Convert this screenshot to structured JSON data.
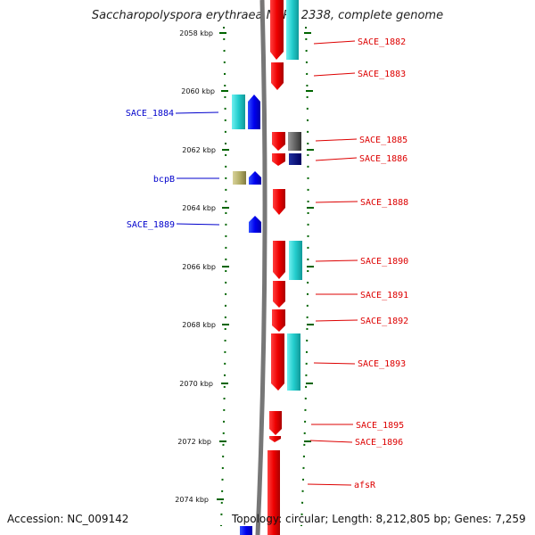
{
  "title": "Saccharopolyspora erythraea NRRL 2338, complete genome",
  "footer": {
    "accession": "Accession: NC_009142",
    "stats": "Topology: circular; Length: 8,212,805 bp; Genes: 7,259"
  },
  "colors": {
    "forward_cds": "#ff0000",
    "reverse_cds": "#0000ff",
    "forward_feature": "#22cccc",
    "reverse_feature": "#33dddd",
    "dark_feature": "#555555",
    "navy_feature": "#000080",
    "khaki_feature": "#b5b06a",
    "tick": "#006400",
    "forward_label": "#dd0000",
    "reverse_label": "#0000cc"
  },
  "ticks": [
    "2058 kbp",
    "2060 kbp",
    "2062 kbp",
    "2064 kbp",
    "2066 kbp",
    "2068 kbp",
    "2070 kbp",
    "2072 kbp",
    "2074 kbp"
  ],
  "forward_labels": [
    "SACE_1882",
    "SACE_1883",
    "SACE_1885",
    "SACE_1886",
    "SACE_1888",
    "SACE_1890",
    "SACE_1891",
    "SACE_1892",
    "SACE_1893",
    "SACE_1895",
    "SACE_1896",
    "afsR"
  ],
  "reverse_labels": [
    "SACE_1884",
    "bcpB",
    "SACE_1889"
  ]
}
